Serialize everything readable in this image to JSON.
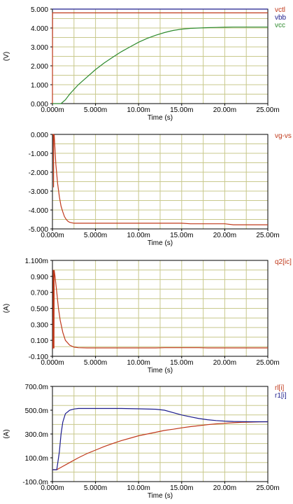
{
  "colors": {
    "background": "#ffffff",
    "grid": "#c8c88c",
    "frame": "#000000",
    "text": "#000000",
    "red": "#c0391b",
    "blue": "#1c1c8c",
    "green": "#2e8b2e"
  },
  "chart_data": [
    {
      "type": "line",
      "xlabel": "Time (s)",
      "ylabel": "(V)",
      "xlim": [
        0,
        0.025
      ],
      "ylim": [
        0,
        5
      ],
      "x_ticks": [
        "0.000m",
        "5.000m",
        "10.00m",
        "15.00m",
        "20.00m",
        "25.00m"
      ],
      "y_ticks": [
        "0.000",
        "1.000",
        "2.000",
        "3.000",
        "4.000",
        "5.000"
      ],
      "grid": true,
      "legend_position": "right",
      "series": [
        {
          "name": "vctl",
          "color": "red",
          "x": [
            0,
            2e-05,
            0.025
          ],
          "y": [
            0,
            4.8,
            4.8
          ]
        },
        {
          "name": "vbb",
          "color": "blue",
          "x": [
            0,
            0.025
          ],
          "y": [
            5,
            5
          ]
        },
        {
          "name": "vcc",
          "color": "green",
          "x": [
            0,
            0.001,
            0.0015,
            0.002,
            0.003,
            0.004,
            0.005,
            0.006,
            0.007,
            0.008,
            0.009,
            0.01,
            0.011,
            0.012,
            0.013,
            0.014,
            0.015,
            0.016,
            0.017,
            0.018,
            0.019,
            0.02,
            0.021,
            0.022,
            0.023,
            0.024,
            0.025
          ],
          "y": [
            0,
            0,
            0.2,
            0.5,
            1.0,
            1.4,
            1.8,
            2.15,
            2.45,
            2.75,
            3.0,
            3.25,
            3.45,
            3.62,
            3.76,
            3.87,
            3.94,
            3.98,
            4.0,
            4.02,
            4.03,
            4.04,
            4.05,
            4.05,
            4.05,
            4.05,
            4.05
          ]
        }
      ]
    },
    {
      "type": "line",
      "xlabel": "Time (s)",
      "ylabel": "",
      "xlim": [
        0,
        0.025
      ],
      "ylim": [
        -5,
        0
      ],
      "x_ticks": [
        "0.000m",
        "5.000m",
        "10.00m",
        "15.00m",
        "20.00m",
        "25.00m"
      ],
      "y_ticks": [
        "-5.000",
        "-4.000",
        "-3.000",
        "-2.000",
        "-1.000",
        "0.000"
      ],
      "grid": true,
      "legend_position": "right",
      "series": [
        {
          "name": "vg-vs",
          "color": "red",
          "x": [
            0,
            5e-05,
            0.0001,
            0.00013,
            0.00015,
            0.00017,
            0.0002,
            0.0004,
            0.0006,
            0.0008,
            0.001,
            0.0012,
            0.0014,
            0.0016,
            0.0018,
            0.002,
            0.0025,
            0.003,
            0.004,
            0.005,
            0.01,
            0.015,
            0.016,
            0.02,
            0.021,
            0.025
          ],
          "y": [
            0,
            0,
            0,
            -2.8,
            0,
            -0.3,
            0,
            -1.6,
            -2.6,
            -3.3,
            -3.8,
            -4.1,
            -4.35,
            -4.5,
            -4.6,
            -4.65,
            -4.7,
            -4.7,
            -4.7,
            -4.7,
            -4.7,
            -4.7,
            -4.73,
            -4.73,
            -4.78,
            -4.78
          ]
        }
      ]
    },
    {
      "type": "line",
      "xlabel": "Time (s)",
      "ylabel": "(A)",
      "xlim": [
        0,
        0.025
      ],
      "ylim": [
        -0.1,
        1.1
      ],
      "x_ticks": [
        "0.000m",
        "5.000m",
        "10.00m",
        "15.00m",
        "20.00m",
        "25.00m"
      ],
      "y_ticks": [
        "-0.100",
        "0.100",
        "0.300",
        "0.500",
        "0.700",
        "0.900",
        "1.100m"
      ],
      "grid": true,
      "legend_position": "right",
      "series": [
        {
          "name": "q2[ic]",
          "color": "red",
          "x": [
            0,
            5e-05,
            0.0001,
            0.00012,
            0.00014,
            0.00018,
            0.0002,
            0.0003,
            0.0005,
            0.0007,
            0.0009,
            0.0012,
            0.0015,
            0.002,
            0.0025,
            0.003,
            0.004,
            0.005,
            0.012,
            0.013,
            0.017,
            0.018,
            0.025
          ],
          "y": [
            0,
            0,
            0.98,
            0,
            0.98,
            0,
            0.98,
            0.9,
            0.7,
            0.5,
            0.35,
            0.2,
            0.1,
            0.04,
            0.015,
            0.008,
            0.005,
            0.005,
            0.005,
            0.008,
            0.008,
            0.005,
            0.005
          ]
        }
      ]
    },
    {
      "type": "line",
      "xlabel": "Time (s)",
      "ylabel": "(A)",
      "xlim": [
        0,
        0.025
      ],
      "ylim": [
        -0.1,
        0.7
      ],
      "x_ticks": [
        "0.000m",
        "5.000m",
        "10.00m",
        "15.00m",
        "20.00m",
        "25.00m"
      ],
      "y_ticks": [
        "-100.0m",
        "100.0m",
        "300.0m",
        "500.0m",
        "700.0m"
      ],
      "grid": true,
      "legend_position": "right",
      "series": [
        {
          "name": "rl[i]",
          "color": "red",
          "x": [
            0,
            0.0005,
            0.001,
            0.002,
            0.003,
            0.004,
            0.005,
            0.006,
            0.007,
            0.008,
            0.009,
            0.01,
            0.011,
            0.012,
            0.013,
            0.014,
            0.015,
            0.016,
            0.017,
            0.018,
            0.019,
            0.02,
            0.021,
            0.022,
            0.023,
            0.024,
            0.025
          ],
          "y": [
            0,
            0,
            0.02,
            0.06,
            0.1,
            0.135,
            0.165,
            0.195,
            0.22,
            0.245,
            0.265,
            0.285,
            0.3,
            0.315,
            0.33,
            0.34,
            0.352,
            0.362,
            0.37,
            0.378,
            0.385,
            0.39,
            0.395,
            0.398,
            0.4,
            0.402,
            0.403
          ]
        },
        {
          "name": "r1[i]",
          "color": "blue",
          "x": [
            0,
            0.0005,
            0.0008,
            0.001,
            0.0012,
            0.0015,
            0.002,
            0.0025,
            0.003,
            0.004,
            0.005,
            0.006,
            0.008,
            0.01,
            0.012,
            0.013,
            0.014,
            0.015,
            0.016,
            0.017,
            0.018,
            0.019,
            0.02,
            0.021,
            0.022,
            0.023,
            0.024,
            0.025
          ],
          "y": [
            0,
            0,
            0.15,
            0.3,
            0.4,
            0.47,
            0.5,
            0.51,
            0.515,
            0.515,
            0.515,
            0.515,
            0.515,
            0.512,
            0.508,
            0.5,
            0.48,
            0.46,
            0.445,
            0.43,
            0.42,
            0.413,
            0.408,
            0.405,
            0.404,
            0.403,
            0.403,
            0.403
          ]
        }
      ]
    }
  ]
}
